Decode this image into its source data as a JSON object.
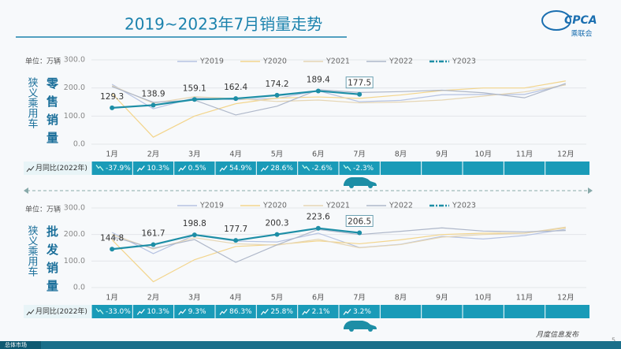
{
  "header": {
    "title": "2019~2023年7月销量走势",
    "logo": "CPCA",
    "logo_sub": "乘联会",
    "footer": "月度信息发布",
    "page": "5",
    "nav": "总体市场"
  },
  "chart_data": [
    {
      "type": "line",
      "unit": "单位：万辆",
      "row_label": "狭义乘用车",
      "metric_label": "零售销量",
      "categories": [
        "1月",
        "2月",
        "3月",
        "4月",
        "5月",
        "6月",
        "7月",
        "8月",
        "9月",
        "10月",
        "11月",
        "12月"
      ],
      "ylim": [
        0,
        300
      ],
      "yticks": [
        {
          "value": 0,
          "label": "0.0"
        },
        {
          "value": 100,
          "label": "100.0"
        },
        {
          "value": 200,
          "label": "200.0"
        },
        {
          "value": 300,
          "label": "300.0"
        }
      ],
      "grid": true,
      "series": [
        {
          "name": "Y2019",
          "color": "#b6c3e2",
          "values": [
            213,
            126,
            165,
            158,
            163,
            190,
            151,
            156,
            176,
            177,
            177,
            212
          ]
        },
        {
          "name": "Y2020",
          "color": "#f3d58c",
          "values": [
            180,
            25,
            100,
            144,
            164,
            168,
            163,
            175,
            191,
            200,
            200,
            225
          ]
        },
        {
          "name": "Y2021",
          "color": "#e6d6b4",
          "values": [
            208,
            146,
            169,
            162,
            152,
            157,
            147,
            150,
            157,
            171,
            186,
            211
          ]
        },
        {
          "name": "Y2022",
          "color": "#aeb7c9",
          "values": [
            205,
            149,
            157,
            104,
            135,
            194,
            184,
            187,
            192,
            183,
            165,
            216
          ]
        },
        {
          "name": "Y2023",
          "color": "#1d8ea6",
          "data_labels": true,
          "values": [
            129.3,
            138.9,
            159.1,
            162.4,
            174.2,
            189.4,
            177.5,
            null,
            null,
            null,
            null,
            null
          ]
        }
      ],
      "yoy": {
        "label": "月同比(2022年)",
        "values": [
          -37.9,
          10.3,
          0.5,
          54.9,
          28.6,
          -2.6,
          -2.3
        ],
        "value_labels": [
          "-37.9%",
          "10.3%",
          "0.5%",
          "54.9%",
          "28.6%",
          "-2.6%",
          "-2.3%"
        ]
      }
    },
    {
      "type": "line",
      "unit": "单位：万辆",
      "row_label": "狭义乘用车",
      "metric_label": "批发销量",
      "categories": [
        "1月",
        "2月",
        "3月",
        "4月",
        "5月",
        "6月",
        "7月",
        "8月",
        "9月",
        "10月",
        "11月",
        "12月"
      ],
      "ylim": [
        0,
        300
      ],
      "yticks": [
        {
          "value": 0,
          "label": "0.0"
        },
        {
          "value": 100,
          "label": "100.0"
        },
        {
          "value": 200,
          "label": "200.0"
        },
        {
          "value": 300,
          "label": "300.0"
        }
      ],
      "grid": true,
      "series": [
        {
          "name": "Y2019",
          "color": "#b6c3e2",
          "values": [
            208,
            128,
            198,
            175,
            172,
            205,
            151,
            163,
            193,
            183,
            196,
            220
          ]
        },
        {
          "name": "Y2020",
          "color": "#f3d58c",
          "values": [
            180,
            22,
            105,
            155,
            162,
            176,
            165,
            180,
            200,
            205,
            205,
            225
          ]
        },
        {
          "name": "Y2021",
          "color": "#e6d6b4",
          "values": [
            200,
            145,
            188,
            165,
            160,
            182,
            150,
            162,
            190,
            200,
            205,
            228
          ]
        },
        {
          "name": "Y2022",
          "color": "#aeb7c9",
          "values": [
            192,
            148,
            181,
            95,
            161,
            219,
            200,
            212,
            225,
            213,
            210,
            215
          ]
        },
        {
          "name": "Y2023",
          "color": "#1d8ea6",
          "data_labels": true,
          "values": [
            144.8,
            161.7,
            198.8,
            177.7,
            200.3,
            223.6,
            206.5,
            null,
            null,
            null,
            null,
            null
          ]
        }
      ],
      "yoy": {
        "label": "月同比(2022年)",
        "values": [
          -33.0,
          10.3,
          9.3,
          86.3,
          25.8,
          2.1,
          3.2
        ],
        "value_labels": [
          "-33.0%",
          "10.3%",
          "9.3%",
          "86.3%",
          "25.8%",
          "2.1%",
          "3.2%"
        ]
      }
    }
  ]
}
